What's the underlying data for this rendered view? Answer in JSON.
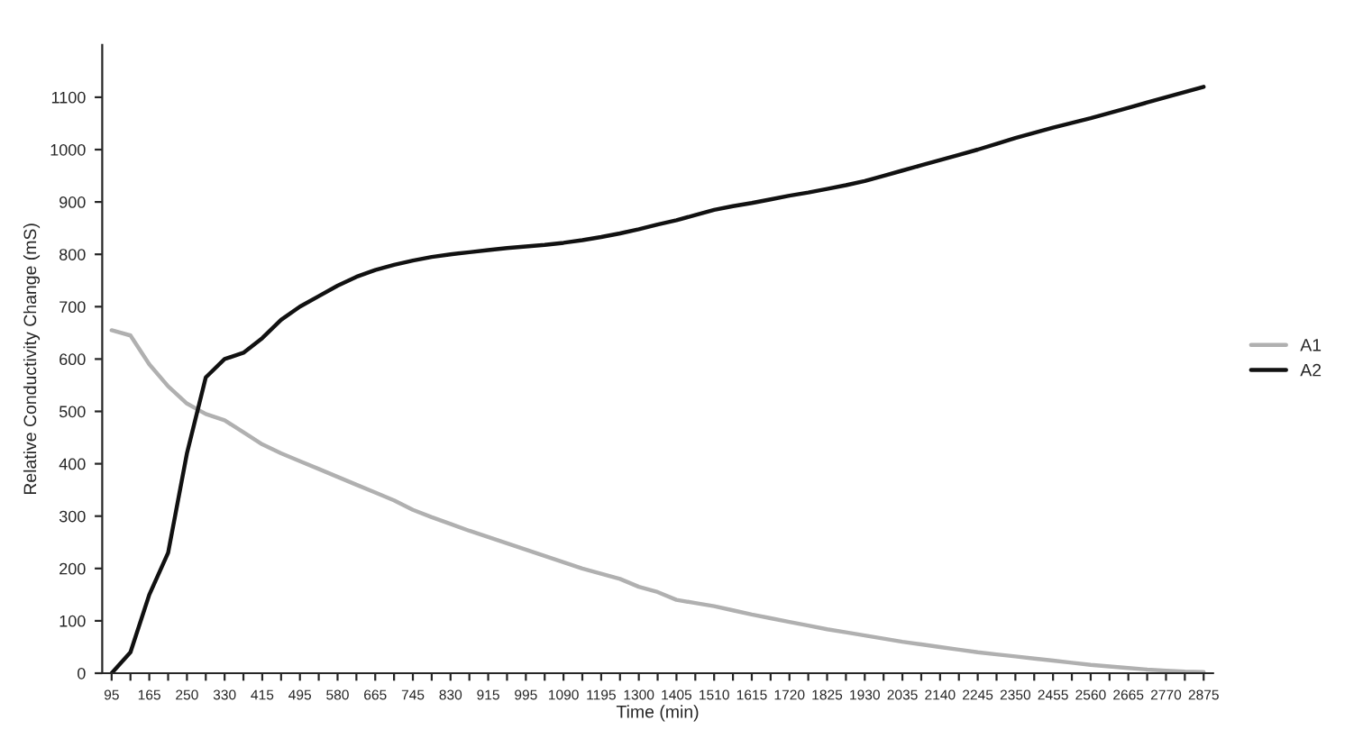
{
  "chart_data": {
    "type": "line",
    "xlabel": "Time (min)",
    "ylabel": "Relative Conductivity Change (mS)",
    "categories": [
      "95",
      null,
      "165",
      null,
      "250",
      null,
      "330",
      null,
      "415",
      null,
      "495",
      null,
      "580",
      null,
      "665",
      null,
      "745",
      null,
      "830",
      null,
      "915",
      null,
      "995",
      null,
      "1090",
      null,
      "1195",
      null,
      "1300",
      null,
      "1405",
      null,
      "1510",
      null,
      "1615",
      null,
      "1720",
      null,
      "1825",
      null,
      "1930",
      null,
      "2035",
      null,
      "2140",
      null,
      "2245",
      null,
      "2350",
      null,
      "2455",
      null,
      "2560",
      null,
      "2665",
      null,
      "2770",
      null,
      "2875"
    ],
    "series": [
      {
        "name": "A1",
        "color": "#b0b0b0",
        "values": [
          655,
          645,
          590,
          548,
          515,
          495,
          483,
          460,
          437,
          420,
          405,
          390,
          375,
          360,
          345,
          330,
          312,
          298,
          285,
          272,
          260,
          248,
          236,
          224,
          212,
          200,
          190,
          180,
          165,
          155,
          140,
          134,
          128,
          120,
          112,
          105,
          98,
          91,
          84,
          78,
          72,
          66,
          60,
          55,
          50,
          45,
          40,
          36,
          32,
          28,
          24,
          20,
          16,
          13,
          10,
          7,
          5,
          3,
          2
        ]
      },
      {
        "name": "A2",
        "color": "#111111",
        "values": [
          0,
          40,
          150,
          230,
          420,
          565,
          600,
          612,
          640,
          675,
          700,
          720,
          740,
          757,
          770,
          780,
          788,
          795,
          800,
          804,
          808,
          812,
          815,
          818,
          822,
          827,
          833,
          840,
          848,
          857,
          865,
          875,
          885,
          892,
          898,
          905,
          912,
          918,
          925,
          932,
          940,
          950,
          960,
          970,
          980,
          990,
          1000,
          1011,
          1022,
          1032,
          1042,
          1051,
          1060,
          1070,
          1080,
          1090,
          1100,
          1110,
          1120
        ]
      }
    ],
    "ylim": [
      0,
      1200
    ],
    "yticks": [
      0,
      100,
      200,
      300,
      400,
      500,
      600,
      700,
      800,
      900,
      1000,
      1100
    ],
    "grid": false,
    "legend": "right",
    "marker": "none",
    "line_style": "solid"
  }
}
